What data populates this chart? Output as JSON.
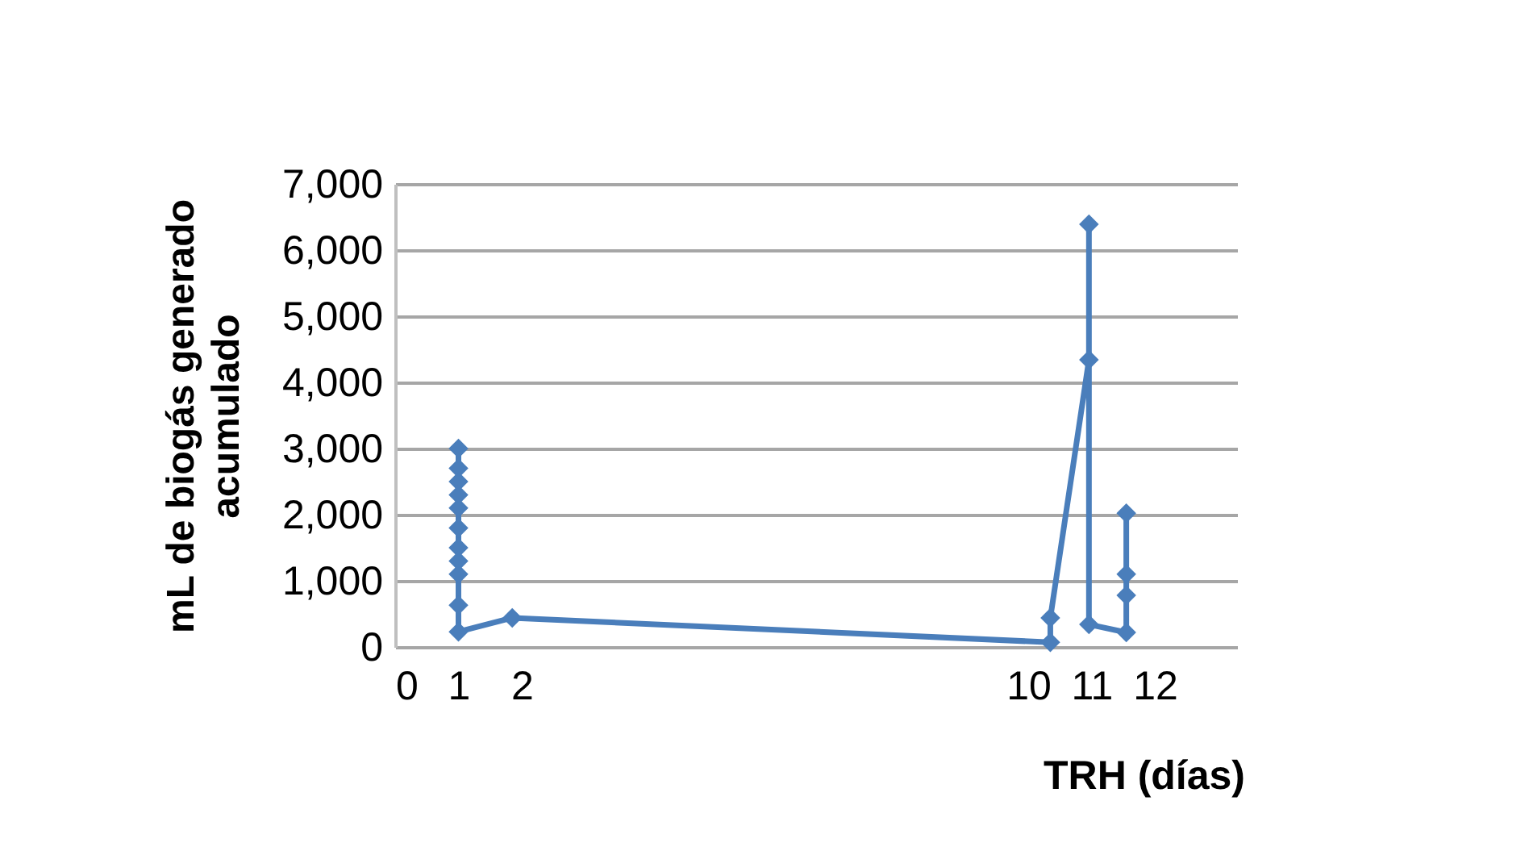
{
  "chart_data": {
    "type": "line",
    "xlabel": "TRH (días)",
    "ylabel": "mL de biogás generado\nacumulado",
    "series": [
      {
        "color": "#4a7ebb",
        "x": [
          1,
          1,
          1,
          1,
          1,
          1,
          1,
          1,
          1,
          1,
          1,
          1.85,
          10.35,
          10.35,
          10.96,
          10.96,
          10.96,
          11.55,
          11.55,
          11.55,
          11.55
        ],
        "values": [
          3000,
          2700,
          2500,
          2300,
          2100,
          1800,
          1500,
          1300,
          1100,
          630,
          230,
          440,
          70,
          440,
          4340,
          6390,
          340,
          220,
          780,
          1100,
          2020
        ]
      }
    ],
    "xlim": [
      0,
      13.3
    ],
    "xticks": [
      0,
      1,
      2,
      10,
      11,
      12
    ],
    "ylim": [
      0,
      7000
    ],
    "yticks": [
      0,
      {
        "value": 1000,
        "label": "1,000"
      },
      {
        "value": 2000,
        "label": "2,000"
      },
      {
        "value": 3000,
        "label": "3,000"
      },
      {
        "value": 4000,
        "label": "4,000"
      },
      {
        "value": 5000,
        "label": "5,000"
      },
      {
        "value": 6000,
        "label": "6,000"
      },
      {
        "value": 7000,
        "label": "7,000"
      }
    ],
    "grid": "y",
    "marker": "diamond",
    "line_style": "solid"
  }
}
